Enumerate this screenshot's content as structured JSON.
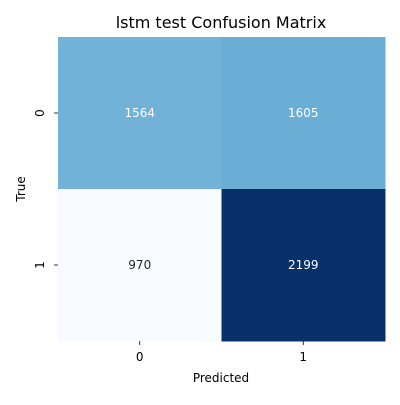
{
  "chart_data": {
    "type": "heatmap",
    "title": "lstm test Confusion Matrix",
    "xlabel": "Predicted",
    "ylabel": "True",
    "x_categories": [
      "0",
      "1"
    ],
    "y_categories": [
      "0",
      "1"
    ],
    "values": [
      [
        1564,
        1605
      ],
      [
        970,
        2199
      ]
    ],
    "colormap": "Blues",
    "colors": {
      "low": "#f7fbff",
      "high": "#08306b",
      "cells": [
        [
          "#73b2d8",
          "#6aaed6"
        ],
        [
          "#f7fbff",
          "#08306b"
        ]
      ],
      "light_text": "#ffffff",
      "dark_text": "#262626"
    }
  }
}
